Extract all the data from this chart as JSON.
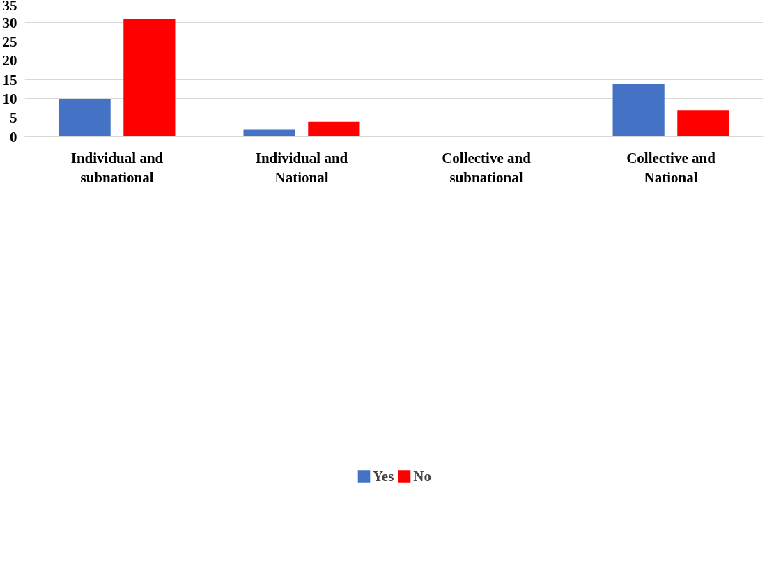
{
  "chart_data": {
    "type": "bar",
    "categories": [
      "Individual and subnational",
      "Individual and National",
      "Collective and subnational",
      "Collective and National"
    ],
    "series": [
      {
        "name": "Yes",
        "color": "#4472c4",
        "values": [
          10,
          2,
          0,
          14
        ]
      },
      {
        "name": "No",
        "color": "#ff0000",
        "values": [
          31,
          4,
          0,
          7
        ]
      }
    ],
    "ylim": [
      0,
      35
    ],
    "yticks": [
      0,
      5,
      10,
      15,
      20,
      25,
      30,
      35
    ],
    "grid": "y",
    "legend": "bottom"
  }
}
